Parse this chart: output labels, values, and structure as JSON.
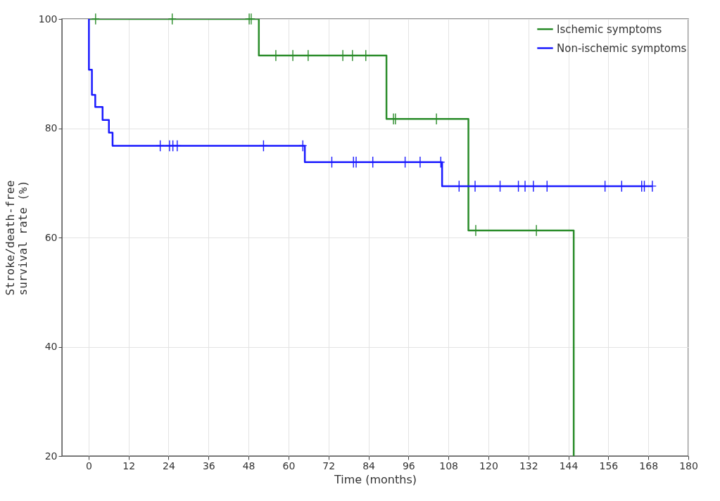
{
  "chart_data": {
    "type": "step",
    "xlabel": "Time (months)",
    "ylabel": "Stroke/death-free survival rate (%)",
    "xlim": [
      -8,
      180
    ],
    "xticks": [
      0,
      12,
      24,
      36,
      48,
      60,
      72,
      84,
      96,
      108,
      120,
      132,
      144,
      156,
      168,
      180
    ],
    "ylim": [
      20,
      100
    ],
    "yticks": [
      20,
      40,
      60,
      80,
      100
    ],
    "grid": true,
    "legend": "top right",
    "series": [
      {
        "name": "Ischemic symptoms",
        "color": "#2a8c2a",
        "type": "step",
        "x": [
          0,
          51.1,
          89.4,
          114,
          145.6
        ],
        "values": [
          100,
          93.3,
          81.7,
          61.3,
          20
        ]
      },
      {
        "name": "Non-ischemic symptoms",
        "color": "#1a1aff",
        "type": "step",
        "x": [
          0,
          0.1,
          1.0,
          2.0,
          4.2,
          6.1,
          7.2,
          64.9,
          106.1,
          169.2
        ],
        "values": [
          100,
          90.7,
          86.1,
          83.9,
          81.5,
          79.2,
          76.8,
          73.8,
          69.4,
          69.4
        ]
      },
      {
        "color": "#2a8c2a",
        "type": "scatter",
        "marker": "cross",
        "x": [
          2.1,
          25.1,
          48.2,
          48.8,
          56.2,
          61.3,
          65.9,
          76.3,
          79.2,
          83.2,
          91.5,
          92.1,
          104.4,
          116.2,
          134.4
        ],
        "values": [
          100,
          100,
          100,
          100,
          93.3,
          93.3,
          93.3,
          93.3,
          93.3,
          93.3,
          81.7,
          81.7,
          81.7,
          61.3,
          61.3
        ]
      },
      {
        "color": "#1a1aff",
        "type": "scatter",
        "marker": "cross",
        "x": [
          21.5,
          24.3,
          25.3,
          26.6,
          52.5,
          64.3,
          73,
          79.5,
          80.3,
          85.3,
          95,
          99.5,
          105.7,
          111.2,
          116,
          123.5,
          129,
          131,
          133.5,
          137.6,
          155,
          160,
          166,
          166.8,
          169.2
        ],
        "values": [
          76.8,
          76.8,
          76.8,
          76.8,
          76.8,
          76.8,
          73.8,
          73.8,
          73.8,
          73.8,
          73.8,
          73.8,
          73.8,
          69.4,
          69.4,
          69.4,
          69.4,
          69.4,
          69.4,
          69.4,
          69.4,
          69.4,
          69.4,
          69.4,
          69.4
        ]
      }
    ]
  }
}
